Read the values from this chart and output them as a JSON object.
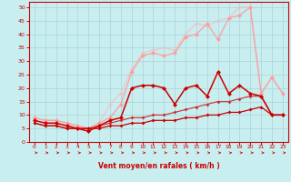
{
  "title": "",
  "xlabel": "Vent moyen/en rafales ( km/h )",
  "ylabel": "",
  "xlim": [
    -0.5,
    23.5
  ],
  "ylim": [
    0,
    52
  ],
  "bg_color": "#c8eef0",
  "grid_color": "#b0d8dc",
  "axis_color": "#cc0000",
  "label_color": "#cc0000",
  "series": [
    {
      "x": [
        0,
        1,
        2,
        3,
        4,
        5,
        6,
        7,
        8,
        9,
        10,
        11,
        12,
        13,
        14,
        15,
        16,
        17,
        18,
        19,
        20,
        21,
        22,
        23
      ],
      "y": [
        7,
        6,
        6,
        5,
        5,
        5,
        5,
        6,
        6,
        7,
        7,
        8,
        8,
        8,
        9,
        9,
        10,
        10,
        11,
        11,
        12,
        13,
        10,
        10
      ],
      "color": "#cc0000",
      "lw": 0.9,
      "marker": "D",
      "ms": 2.0,
      "alpha": 1.0,
      "zorder": 4
    },
    {
      "x": [
        0,
        1,
        2,
        3,
        4,
        5,
        6,
        7,
        8,
        9,
        10,
        11,
        12,
        13,
        14,
        15,
        16,
        17,
        18,
        19,
        20,
        21,
        22,
        23
      ],
      "y": [
        7,
        6,
        6,
        5,
        5,
        5,
        6,
        7,
        8,
        9,
        9,
        10,
        10,
        11,
        12,
        13,
        14,
        15,
        15,
        16,
        17,
        17,
        10,
        10
      ],
      "color": "#cc2222",
      "lw": 0.9,
      "marker": "D",
      "ms": 2.0,
      "alpha": 0.85,
      "zorder": 3
    },
    {
      "x": [
        0,
        1,
        2,
        3,
        4,
        5,
        6,
        7,
        8,
        9,
        10,
        11,
        12,
        13,
        14,
        15,
        16,
        17,
        18,
        19,
        20,
        21,
        22,
        23
      ],
      "y": [
        8,
        7,
        7,
        6,
        5,
        4,
        6,
        8,
        9,
        20,
        21,
        21,
        20,
        14,
        20,
        21,
        17,
        26,
        18,
        21,
        18,
        17,
        10,
        10
      ],
      "color": "#cc0000",
      "lw": 1.1,
      "marker": "D",
      "ms": 2.5,
      "alpha": 1.0,
      "zorder": 5
    },
    {
      "x": [
        0,
        1,
        2,
        3,
        4,
        5,
        6,
        7,
        8,
        9,
        10,
        11,
        12,
        13,
        14,
        15,
        16,
        17,
        18,
        19,
        20,
        21,
        22,
        23
      ],
      "y": [
        9,
        8,
        8,
        7,
        6,
        5,
        7,
        9,
        14,
        26,
        32,
        33,
        32,
        33,
        39,
        40,
        44,
        38,
        46,
        47,
        50,
        18,
        24,
        18
      ],
      "color": "#ff9999",
      "lw": 1.0,
      "marker": "D",
      "ms": 2.5,
      "alpha": 0.85,
      "zorder": 2
    },
    {
      "x": [
        0,
        1,
        2,
        3,
        4,
        5,
        6,
        7,
        8,
        9,
        10,
        11,
        12,
        13,
        14,
        15,
        16,
        17,
        18,
        19,
        20,
        21,
        22,
        23
      ],
      "y": [
        9,
        8,
        8,
        7,
        6,
        5,
        7,
        14,
        18,
        27,
        33,
        34,
        35,
        34,
        40,
        44,
        43,
        45,
        46,
        50,
        50,
        18,
        24,
        18
      ],
      "color": "#ffbbbb",
      "lw": 1.0,
      "marker": "D",
      "ms": 2.5,
      "alpha": 0.75,
      "zorder": 1
    }
  ],
  "xticks": [
    0,
    1,
    2,
    3,
    4,
    5,
    6,
    7,
    8,
    9,
    10,
    11,
    12,
    13,
    14,
    15,
    16,
    17,
    18,
    19,
    20,
    21,
    22,
    23
  ],
  "yticks": [
    0,
    5,
    10,
    15,
    20,
    25,
    30,
    35,
    40,
    45,
    50
  ]
}
